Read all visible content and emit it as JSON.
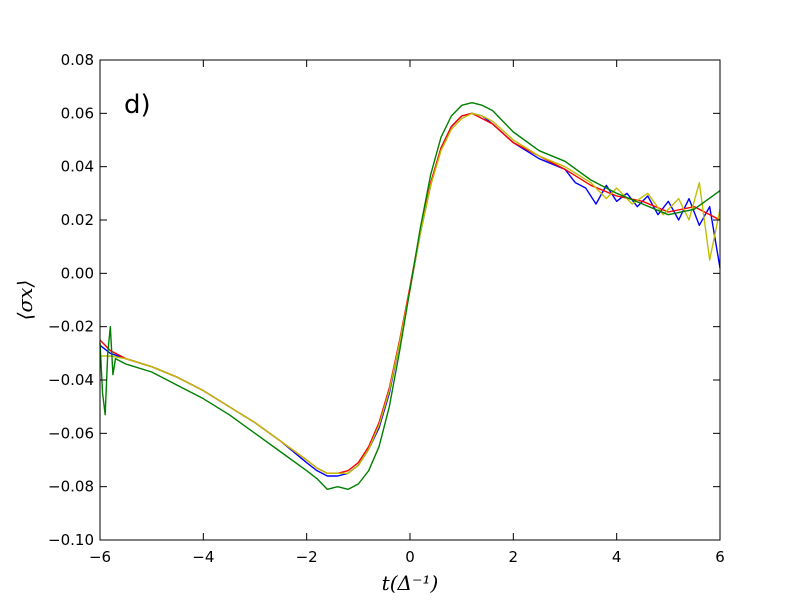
{
  "chart_data": {
    "type": "line",
    "panel_label": "d)",
    "xlabel": "t(Δ⁻¹)",
    "ylabel": "⟨σx⟩",
    "xlim": [
      -6,
      6
    ],
    "ylim": [
      -0.1,
      0.08
    ],
    "x_ticks": [
      -6,
      -4,
      -2,
      0,
      2,
      4,
      6
    ],
    "y_ticks": [
      -0.1,
      -0.08,
      -0.06,
      -0.04,
      -0.02,
      0.0,
      0.02,
      0.04,
      0.06,
      0.08
    ],
    "x_tick_labels": [
      "−6",
      "−4",
      "−2",
      "0",
      "2",
      "4",
      "6"
    ],
    "y_tick_labels": [
      "−0.10",
      "−0.08",
      "−0.06",
      "−0.04",
      "−0.02",
      "0.00",
      "0.02",
      "0.04",
      "0.06",
      "0.08"
    ],
    "grid": false,
    "series": [
      {
        "color": "#0000ff",
        "x": [
          -6,
          -5.8,
          -5.5,
          -5,
          -4.5,
          -4,
          -3.5,
          -3,
          -2.5,
          -2,
          -1.8,
          -1.6,
          -1.4,
          -1.2,
          -1.0,
          -0.8,
          -0.6,
          -0.4,
          -0.2,
          0,
          0.2,
          0.4,
          0.6,
          0.8,
          1.0,
          1.2,
          1.4,
          1.6,
          2.0,
          2.5,
          3.0,
          3.2,
          3.4,
          3.6,
          3.8,
          4.0,
          4.2,
          4.4,
          4.6,
          4.8,
          5.0,
          5.2,
          5.4,
          5.6,
          5.8,
          6.0
        ],
        "y": [
          -0.027,
          -0.03,
          -0.032,
          -0.035,
          -0.039,
          -0.044,
          -0.05,
          -0.056,
          -0.063,
          -0.071,
          -0.074,
          -0.076,
          -0.076,
          -0.075,
          -0.072,
          -0.066,
          -0.058,
          -0.045,
          -0.026,
          -0.006,
          0.015,
          0.033,
          0.047,
          0.055,
          0.059,
          0.06,
          0.059,
          0.056,
          0.049,
          0.043,
          0.039,
          0.034,
          0.032,
          0.026,
          0.033,
          0.027,
          0.03,
          0.025,
          0.029,
          0.022,
          0.027,
          0.02,
          0.028,
          0.018,
          0.025,
          0.002
        ]
      },
      {
        "color": "#ff0000",
        "x": [
          -6,
          -5.8,
          -5.5,
          -5,
          -4.5,
          -4,
          -3.5,
          -3,
          -2.5,
          -2,
          -1.8,
          -1.6,
          -1.4,
          -1.2,
          -1.0,
          -0.8,
          -0.6,
          -0.4,
          -0.2,
          0,
          0.2,
          0.4,
          0.6,
          0.8,
          1.0,
          1.2,
          1.4,
          1.6,
          2.0,
          2.5,
          3.0,
          3.5,
          4.0,
          4.5,
          5.0,
          5.5,
          6.0
        ],
        "y": [
          -0.025,
          -0.029,
          -0.032,
          -0.035,
          -0.039,
          -0.044,
          -0.05,
          -0.056,
          -0.063,
          -0.07,
          -0.073,
          -0.075,
          -0.075,
          -0.074,
          -0.071,
          -0.065,
          -0.056,
          -0.043,
          -0.025,
          -0.005,
          0.016,
          0.034,
          0.047,
          0.055,
          0.059,
          0.06,
          0.058,
          0.056,
          0.049,
          0.044,
          0.039,
          0.033,
          0.029,
          0.027,
          0.023,
          0.025,
          0.02
        ]
      },
      {
        "color": "#bfbf00",
        "x": [
          -6,
          -5.8,
          -5.5,
          -5,
          -4.5,
          -4,
          -3.5,
          -3,
          -2.5,
          -2,
          -1.8,
          -1.6,
          -1.4,
          -1.2,
          -1.0,
          -0.8,
          -0.6,
          -0.4,
          -0.2,
          0,
          0.2,
          0.4,
          0.6,
          0.8,
          1.0,
          1.2,
          1.4,
          1.6,
          2.0,
          2.5,
          3.0,
          3.5,
          3.8,
          4.0,
          4.3,
          4.6,
          4.9,
          5.2,
          5.4,
          5.6,
          5.8,
          6.0
        ],
        "y": [
          -0.031,
          -0.031,
          -0.032,
          -0.035,
          -0.039,
          -0.044,
          -0.05,
          -0.056,
          -0.063,
          -0.07,
          -0.073,
          -0.075,
          -0.075,
          -0.075,
          -0.072,
          -0.066,
          -0.057,
          -0.044,
          -0.026,
          -0.006,
          0.015,
          0.033,
          0.046,
          0.054,
          0.058,
          0.06,
          0.059,
          0.057,
          0.05,
          0.044,
          0.04,
          0.034,
          0.028,
          0.032,
          0.026,
          0.03,
          0.022,
          0.028,
          0.02,
          0.034,
          0.005,
          0.024
        ]
      },
      {
        "color": "#008000",
        "x": [
          -6,
          -5.95,
          -5.9,
          -5.85,
          -5.8,
          -5.75,
          -5.7,
          -5.6,
          -5.5,
          -5,
          -4.5,
          -4,
          -3.5,
          -3,
          -2.5,
          -2,
          -1.8,
          -1.6,
          -1.4,
          -1.2,
          -1.0,
          -0.8,
          -0.6,
          -0.4,
          -0.2,
          0,
          0.2,
          0.4,
          0.6,
          0.8,
          1.0,
          1.2,
          1.4,
          1.6,
          1.8,
          2.0,
          2.5,
          3.0,
          3.5,
          4.0,
          4.5,
          5.0,
          5.5,
          6.0
        ],
        "y": [
          -0.026,
          -0.045,
          -0.053,
          -0.03,
          -0.02,
          -0.038,
          -0.032,
          -0.033,
          -0.034,
          -0.037,
          -0.042,
          -0.047,
          -0.053,
          -0.06,
          -0.067,
          -0.074,
          -0.077,
          -0.081,
          -0.08,
          -0.081,
          -0.079,
          -0.074,
          -0.065,
          -0.05,
          -0.029,
          -0.006,
          0.017,
          0.037,
          0.051,
          0.059,
          0.063,
          0.064,
          0.063,
          0.061,
          0.057,
          0.053,
          0.046,
          0.042,
          0.035,
          0.03,
          0.026,
          0.022,
          0.024,
          0.031
        ]
      }
    ]
  }
}
